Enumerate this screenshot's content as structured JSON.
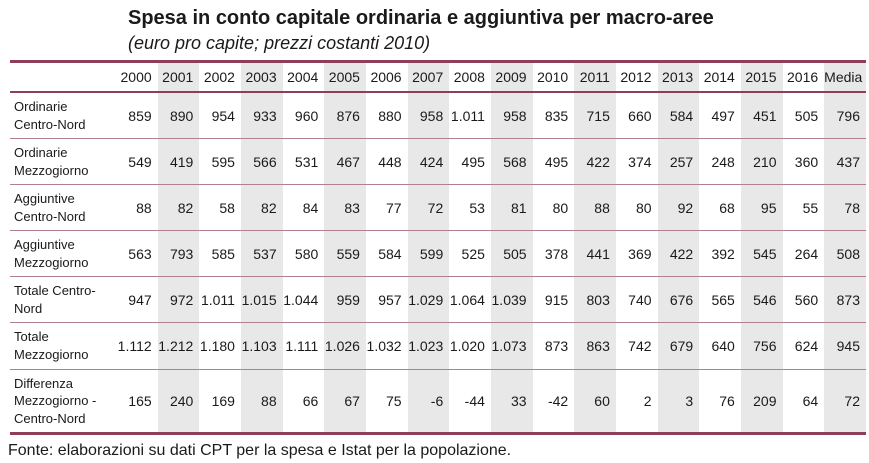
{
  "title": "Spesa in conto capitale ordinaria e aggiuntiva per macro-aree",
  "subtitle": "(euro pro capite; prezzi costanti 2010)",
  "source_note": "Fonte: elaborazioni su dati CPT per la spesa e Istat per la popolazione.",
  "colors": {
    "border_thick": "#8E3D5B",
    "border_thin": "#B27E92",
    "column_shade": "#E8E8E8",
    "text": "#1A1A1A"
  },
  "chart_data": {
    "type": "table",
    "title": "Spesa in conto capitale ordinaria e aggiuntiva per macro-aree",
    "subtitle": "(euro pro capite; prezzi costanti 2010)",
    "columns": [
      "2000",
      "2001",
      "2002",
      "2003",
      "2004",
      "2005",
      "2006",
      "2007",
      "2008",
      "2009",
      "2010",
      "2011",
      "2012",
      "2013",
      "2014",
      "2015",
      "2016",
      "Media"
    ],
    "shaded_column_indices": [
      1,
      3,
      5,
      7,
      9,
      11,
      13,
      15,
      17
    ],
    "rows": [
      {
        "label": "Ordinarie Centro-Nord",
        "values": [
          "859",
          "890",
          "954",
          "933",
          "960",
          "876",
          "880",
          "958",
          "1.011",
          "958",
          "835",
          "715",
          "660",
          "584",
          "497",
          "451",
          "505",
          "796"
        ]
      },
      {
        "label": "Ordinarie Mezzogiorno",
        "values": [
          "549",
          "419",
          "595",
          "566",
          "531",
          "467",
          "448",
          "424",
          "495",
          "568",
          "495",
          "422",
          "374",
          "257",
          "248",
          "210",
          "360",
          "437"
        ]
      },
      {
        "label": "Aggiuntive Centro-Nord",
        "values": [
          "88",
          "82",
          "58",
          "82",
          "84",
          "83",
          "77",
          "72",
          "53",
          "81",
          "80",
          "88",
          "80",
          "92",
          "68",
          "95",
          "55",
          "78"
        ]
      },
      {
        "label": "Aggiuntive Mezzogiorno",
        "values": [
          "563",
          "793",
          "585",
          "537",
          "580",
          "559",
          "584",
          "599",
          "525",
          "505",
          "378",
          "441",
          "369",
          "422",
          "392",
          "545",
          "264",
          "508"
        ]
      },
      {
        "label": "Totale Centro-Nord",
        "values": [
          "947",
          "972",
          "1.011",
          "1.015",
          "1.044",
          "959",
          "957",
          "1.029",
          "1.064",
          "1.039",
          "915",
          "803",
          "740",
          "676",
          "565",
          "546",
          "560",
          "873"
        ]
      },
      {
        "label": "Totale Mezzogiorno",
        "values": [
          "1.112",
          "1.212",
          "1.180",
          "1.103",
          "1.111",
          "1.026",
          "1.032",
          "1.023",
          "1.020",
          "1.073",
          "873",
          "863",
          "742",
          "679",
          "640",
          "756",
          "624",
          "945"
        ]
      },
      {
        "label": "Differenza Mezzogiorno - Centro-Nord",
        "values": [
          "165",
          "240",
          "169",
          "88",
          "66",
          "67",
          "75",
          "-6",
          "-44",
          "33",
          "-42",
          "60",
          "2",
          "3",
          "76",
          "209",
          "64",
          "72"
        ]
      }
    ]
  }
}
